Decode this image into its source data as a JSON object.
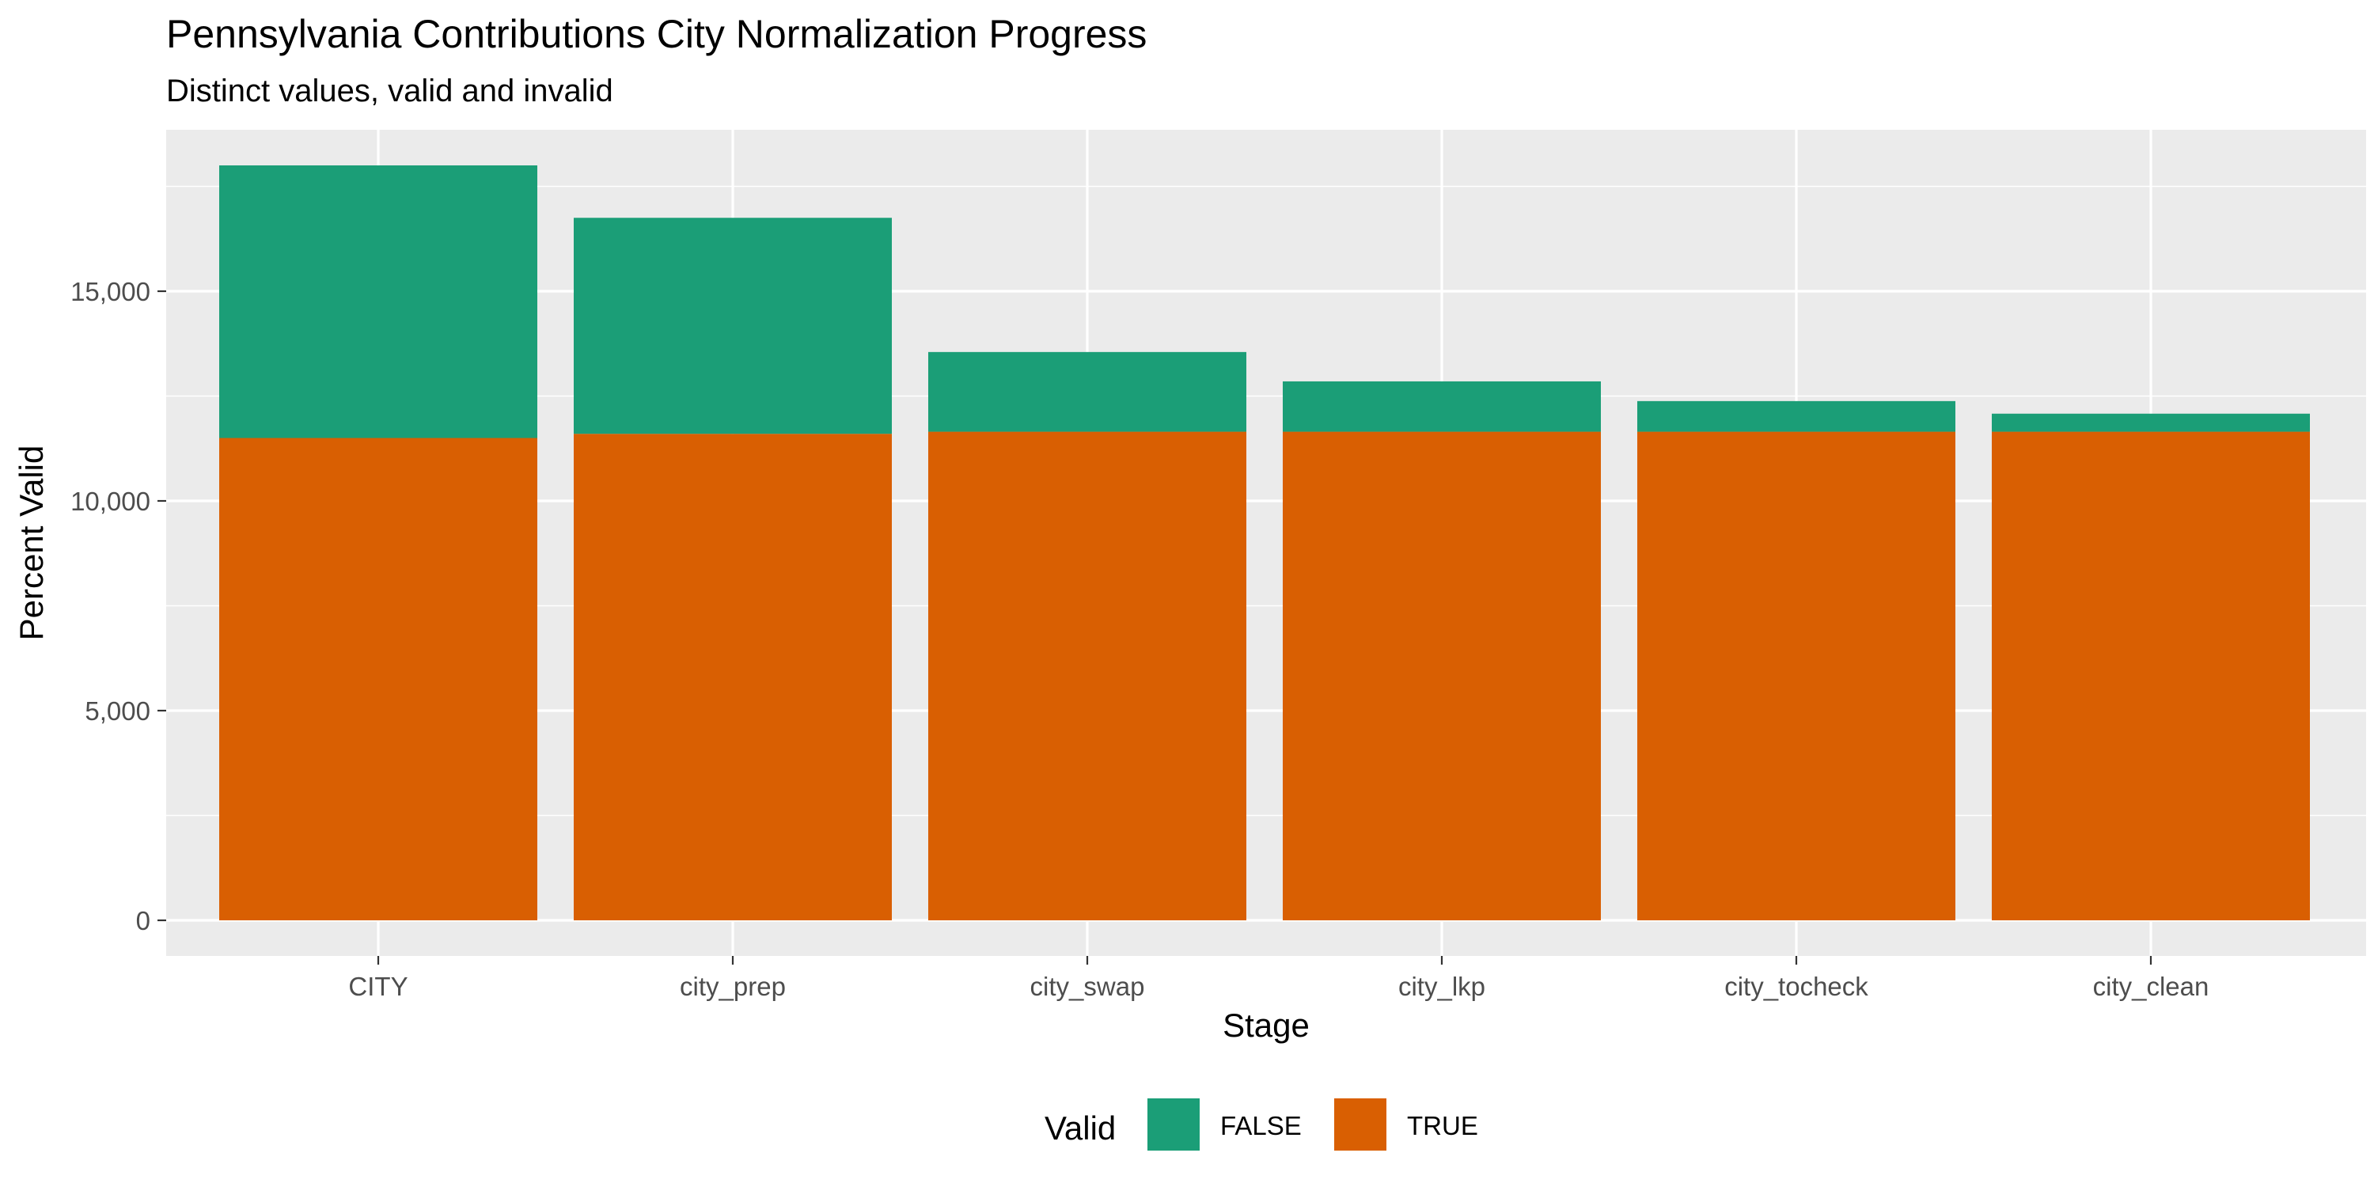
{
  "chart_data": {
    "type": "bar",
    "stacked": true,
    "title": "Pennsylvania Contributions City Normalization Progress",
    "subtitle": "Distinct values, valid and invalid",
    "xlabel": "Stage",
    "ylabel": "Percent Valid",
    "categories": [
      "CITY",
      "city_prep",
      "city_swap",
      "city_lkp",
      "city_tocheck",
      "city_clean"
    ],
    "series": [
      {
        "name": "TRUE",
        "color": "#D95F02",
        "values": [
          11500,
          11600,
          11650,
          11650,
          11650,
          11650
        ]
      },
      {
        "name": "FALSE",
        "color": "#1B9E77",
        "values": [
          6500,
          5150,
          1900,
          1200,
          730,
          430
        ]
      }
    ],
    "ylim": [
      0,
      18900
    ],
    "yticks": [
      0,
      5000,
      10000,
      15000
    ],
    "ytick_labels": [
      "0",
      "5,000",
      "10,000",
      "15,000"
    ],
    "grid": true,
    "legend": {
      "title": "Valid",
      "position": "bottom",
      "items": [
        {
          "label": "FALSE",
          "color": "#1B9E77"
        },
        {
          "label": "TRUE",
          "color": "#D95F02"
        }
      ]
    }
  }
}
